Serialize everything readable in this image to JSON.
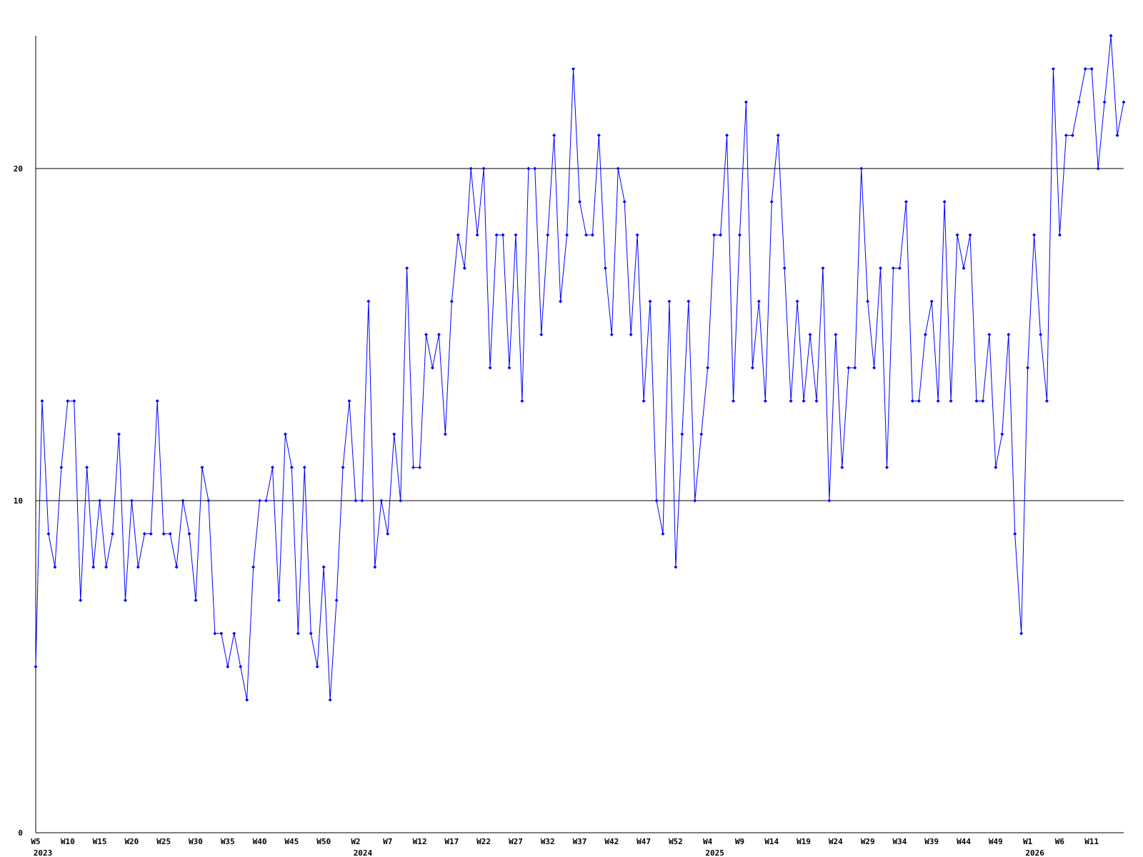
{
  "chart_data": {
    "type": "line",
    "categories": [
      "W5",
      null,
      null,
      null,
      null,
      "W10",
      null,
      null,
      null,
      null,
      "W15",
      null,
      null,
      null,
      null,
      "W20",
      null,
      null,
      null,
      null,
      "W25",
      null,
      null,
      null,
      null,
      "W30",
      null,
      null,
      null,
      null,
      "W35",
      null,
      null,
      null,
      null,
      "W40",
      null,
      null,
      null,
      null,
      "W45",
      null,
      null,
      null,
      null,
      "W50",
      null,
      null,
      null,
      null,
      "W2",
      null,
      null,
      null,
      null,
      "W7",
      null,
      null,
      null,
      null,
      "W12",
      null,
      null,
      null,
      null,
      "W17",
      null,
      null,
      null,
      null,
      "W22",
      null,
      null,
      null,
      null,
      "W27",
      null,
      null,
      null,
      null,
      "W32",
      null,
      null,
      null,
      null,
      "W37",
      null,
      null,
      null,
      null,
      "W42",
      null,
      null,
      null,
      null,
      "W47",
      null,
      null,
      null,
      null,
      "W52",
      null,
      null,
      null,
      null,
      "W4",
      null,
      null,
      null,
      null,
      "W9",
      null,
      null,
      null,
      null,
      "W14",
      null,
      null,
      null,
      null,
      "W19",
      null,
      null,
      null,
      null,
      "W24",
      null,
      null,
      null,
      null,
      "W29",
      null,
      null,
      null,
      null,
      "W34",
      null,
      null,
      null,
      null,
      "W39",
      null,
      null,
      null,
      null,
      "W44",
      null,
      null,
      null,
      null,
      "W49",
      null,
      null,
      null,
      null,
      "W1",
      null,
      null,
      null,
      null,
      "W6",
      null,
      null,
      null,
      null,
      "W11",
      null,
      null,
      null,
      null,
      null
    ],
    "category_years": [
      "2023",
      null,
      null,
      null,
      null,
      null,
      null,
      null,
      null,
      null,
      null,
      null,
      null,
      null,
      null,
      null,
      null,
      null,
      null,
      null,
      null,
      null,
      null,
      null,
      null,
      null,
      null,
      null,
      null,
      null,
      null,
      null,
      null,
      null,
      null,
      null,
      null,
      null,
      null,
      null,
      null,
      null,
      null,
      null,
      null,
      null,
      null,
      null,
      null,
      null,
      "2024",
      null,
      null,
      null,
      null,
      null,
      null,
      null,
      null,
      null,
      null,
      null,
      null,
      null,
      null,
      null,
      null,
      null,
      null,
      null,
      null,
      null,
      null,
      null,
      null,
      null,
      null,
      null,
      null,
      null,
      null,
      null,
      null,
      null,
      null,
      null,
      null,
      null,
      null,
      null,
      null,
      null,
      null,
      null,
      null,
      null,
      null,
      null,
      null,
      null,
      null,
      null,
      null,
      null,
      null,
      "2025",
      null,
      null,
      null,
      null,
      null,
      null,
      null,
      null,
      null,
      null,
      null,
      null,
      null,
      null,
      null,
      null,
      null,
      null,
      null,
      null,
      null,
      null,
      null,
      null,
      null,
      null,
      null,
      null,
      null,
      null,
      null,
      null,
      null,
      null,
      null,
      null,
      null,
      null,
      null,
      null,
      null,
      null,
      null,
      null,
      null,
      null,
      null,
      null,
      null,
      "2026",
      null,
      null,
      null,
      null,
      null,
      null,
      null,
      null,
      null,
      null,
      null,
      null,
      null,
      null,
      null
    ],
    "values": [
      5,
      13,
      9,
      8,
      11,
      13,
      13,
      7,
      11,
      8,
      10,
      8,
      9,
      12,
      7,
      10,
      8,
      9,
      9,
      13,
      9,
      9,
      8,
      10,
      9,
      7,
      11,
      10,
      6,
      6,
      5,
      6,
      5,
      4,
      8,
      10,
      10,
      11,
      7,
      12,
      11,
      6,
      11,
      6,
      5,
      8,
      4,
      7,
      11,
      13,
      10,
      10,
      16,
      8,
      10,
      9,
      12,
      10,
      17,
      11,
      11,
      15,
      14,
      15,
      12,
      16,
      18,
      17,
      20,
      18,
      20,
      14,
      18,
      18,
      14,
      18,
      13,
      20,
      20,
      15,
      18,
      21,
      16,
      18,
      23,
      19,
      18,
      18,
      21,
      17,
      15,
      20,
      19,
      15,
      18,
      13,
      16,
      10,
      9,
      16,
      8,
      12,
      16,
      10,
      12,
      14,
      18,
      18,
      21,
      13,
      18,
      22,
      14,
      16,
      13,
      19,
      21,
      17,
      13,
      16,
      13,
      15,
      13,
      17,
      10,
      15,
      11,
      14,
      14,
      20,
      16,
      14,
      17,
      11,
      17,
      17,
      19,
      13,
      13,
      15,
      16,
      13,
      19,
      13,
      18,
      17,
      18,
      13,
      13,
      15,
      11,
      12,
      15,
      9,
      6,
      14,
      18,
      15,
      13,
      23,
      18,
      21,
      21,
      22,
      23,
      23,
      20,
      22,
      24,
      21,
      22
    ],
    "color": "#0000ff",
    "ylim": [
      0,
      24
    ],
    "yticks": [
      0,
      10,
      20
    ],
    "grid": true
  }
}
